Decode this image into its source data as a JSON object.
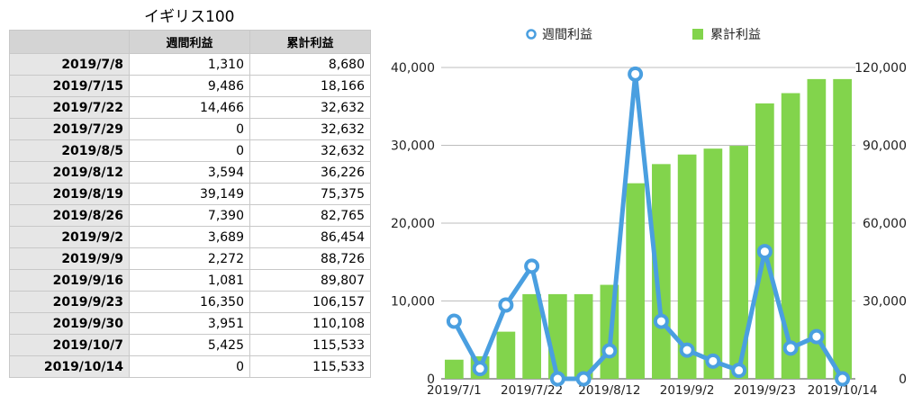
{
  "table": {
    "title": "イギリス100",
    "headers": [
      "",
      "週間利益",
      "累計利益"
    ],
    "rows": [
      {
        "date": "2019/7/8",
        "weekly": "1,310",
        "total": "8,680"
      },
      {
        "date": "2019/7/15",
        "weekly": "9,486",
        "total": "18,166"
      },
      {
        "date": "2019/7/22",
        "weekly": "14,466",
        "total": "32,632"
      },
      {
        "date": "2019/7/29",
        "weekly": "0",
        "total": "32,632"
      },
      {
        "date": "2019/8/5",
        "weekly": "0",
        "total": "32,632"
      },
      {
        "date": "2019/8/12",
        "weekly": "3,594",
        "total": "36,226"
      },
      {
        "date": "2019/8/19",
        "weekly": "39,149",
        "total": "75,375"
      },
      {
        "date": "2019/8/26",
        "weekly": "7,390",
        "total": "82,765"
      },
      {
        "date": "2019/9/2",
        "weekly": "3,689",
        "total": "86,454"
      },
      {
        "date": "2019/9/9",
        "weekly": "2,272",
        "total": "88,726"
      },
      {
        "date": "2019/9/16",
        "weekly": "1,081",
        "total": "89,807"
      },
      {
        "date": "2019/9/23",
        "weekly": "16,350",
        "total": "106,157"
      },
      {
        "date": "2019/9/30",
        "weekly": "3,951",
        "total": "110,108"
      },
      {
        "date": "2019/10/7",
        "weekly": "5,425",
        "total": "115,533"
      },
      {
        "date": "2019/10/14",
        "weekly": "0",
        "total": "115,533"
      }
    ]
  },
  "chart_data": {
    "type": "bar+line",
    "categories": [
      "2019/7/1",
      "2019/7/8",
      "2019/7/15",
      "2019/7/22",
      "2019/7/29",
      "2019/8/5",
      "2019/8/12",
      "2019/8/19",
      "2019/8/26",
      "2019/9/2",
      "2019/9/9",
      "2019/9/16",
      "2019/9/23",
      "2019/9/30",
      "2019/10/7",
      "2019/10/14"
    ],
    "x_tick_labels": [
      "2019/7/1",
      "2019/7/22",
      "2019/8/12",
      "2019/9/2",
      "2019/9/23",
      "2019/10/14"
    ],
    "series": [
      {
        "name": "週間利益",
        "type": "line",
        "axis": "left",
        "color": "#4a9fe0",
        "values": [
          7400,
          1310,
          9486,
          14466,
          0,
          0,
          3594,
          39149,
          7390,
          3689,
          2272,
          1081,
          16350,
          3951,
          5425,
          0
        ]
      },
      {
        "name": "累計利益",
        "type": "bar",
        "axis": "right",
        "color": "#82d44c",
        "values": [
          7370,
          8680,
          18166,
          32632,
          32632,
          32632,
          36226,
          75375,
          82765,
          86454,
          88726,
          89807,
          106157,
          110108,
          115533,
          115533
        ]
      }
    ],
    "y_left": {
      "lim": [
        0,
        40000
      ],
      "ticks": [
        "0",
        "10,000",
        "20,000",
        "30,000",
        "40,000"
      ]
    },
    "y_right": {
      "lim": [
        0,
        120000
      ],
      "ticks": [
        "0",
        "30,000",
        "60,000",
        "90,000",
        "120,000"
      ]
    },
    "grid": "horizontal",
    "legend": "top"
  }
}
